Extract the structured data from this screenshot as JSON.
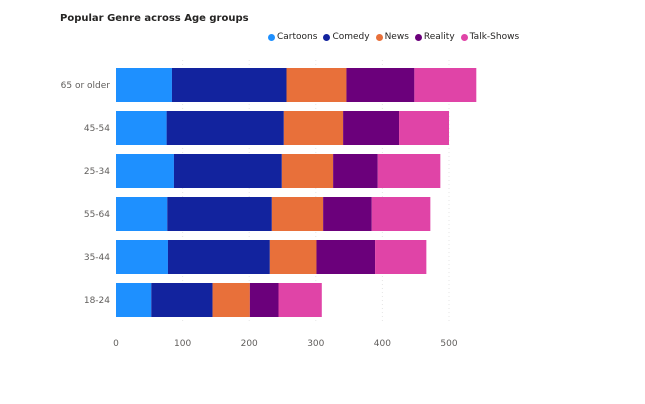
{
  "chart_data": {
    "type": "bar",
    "orientation": "horizontal",
    "stacked": true,
    "title": "Popular Genre across Age groups",
    "categories": [
      "65 or older",
      "45-54",
      "25-34",
      "55-64",
      "35-44",
      "18-24"
    ],
    "series": [
      {
        "name": "Cartoons",
        "color": "#1E90FF",
        "values": [
          84,
          76,
          87,
          77,
          78,
          53
        ]
      },
      {
        "name": "Comedy",
        "color": "#12239E",
        "values": [
          172,
          176,
          162,
          157,
          153,
          92
        ]
      },
      {
        "name": "News",
        "color": "#E8703A",
        "values": [
          90,
          89,
          77,
          77,
          70,
          56
        ]
      },
      {
        "name": "Reality",
        "color": "#6B007B",
        "values": [
          102,
          84,
          67,
          73,
          88,
          43
        ]
      },
      {
        "name": "Talk-Shows",
        "color": "#E044A7",
        "values": [
          93,
          75,
          94,
          88,
          77,
          65
        ]
      }
    ],
    "xlim": [
      0,
      540
    ],
    "xticks": [
      0,
      100,
      200,
      300,
      400,
      500
    ],
    "xlabel": "",
    "ylabel": "",
    "legend_position": "top-right",
    "grid": true
  }
}
